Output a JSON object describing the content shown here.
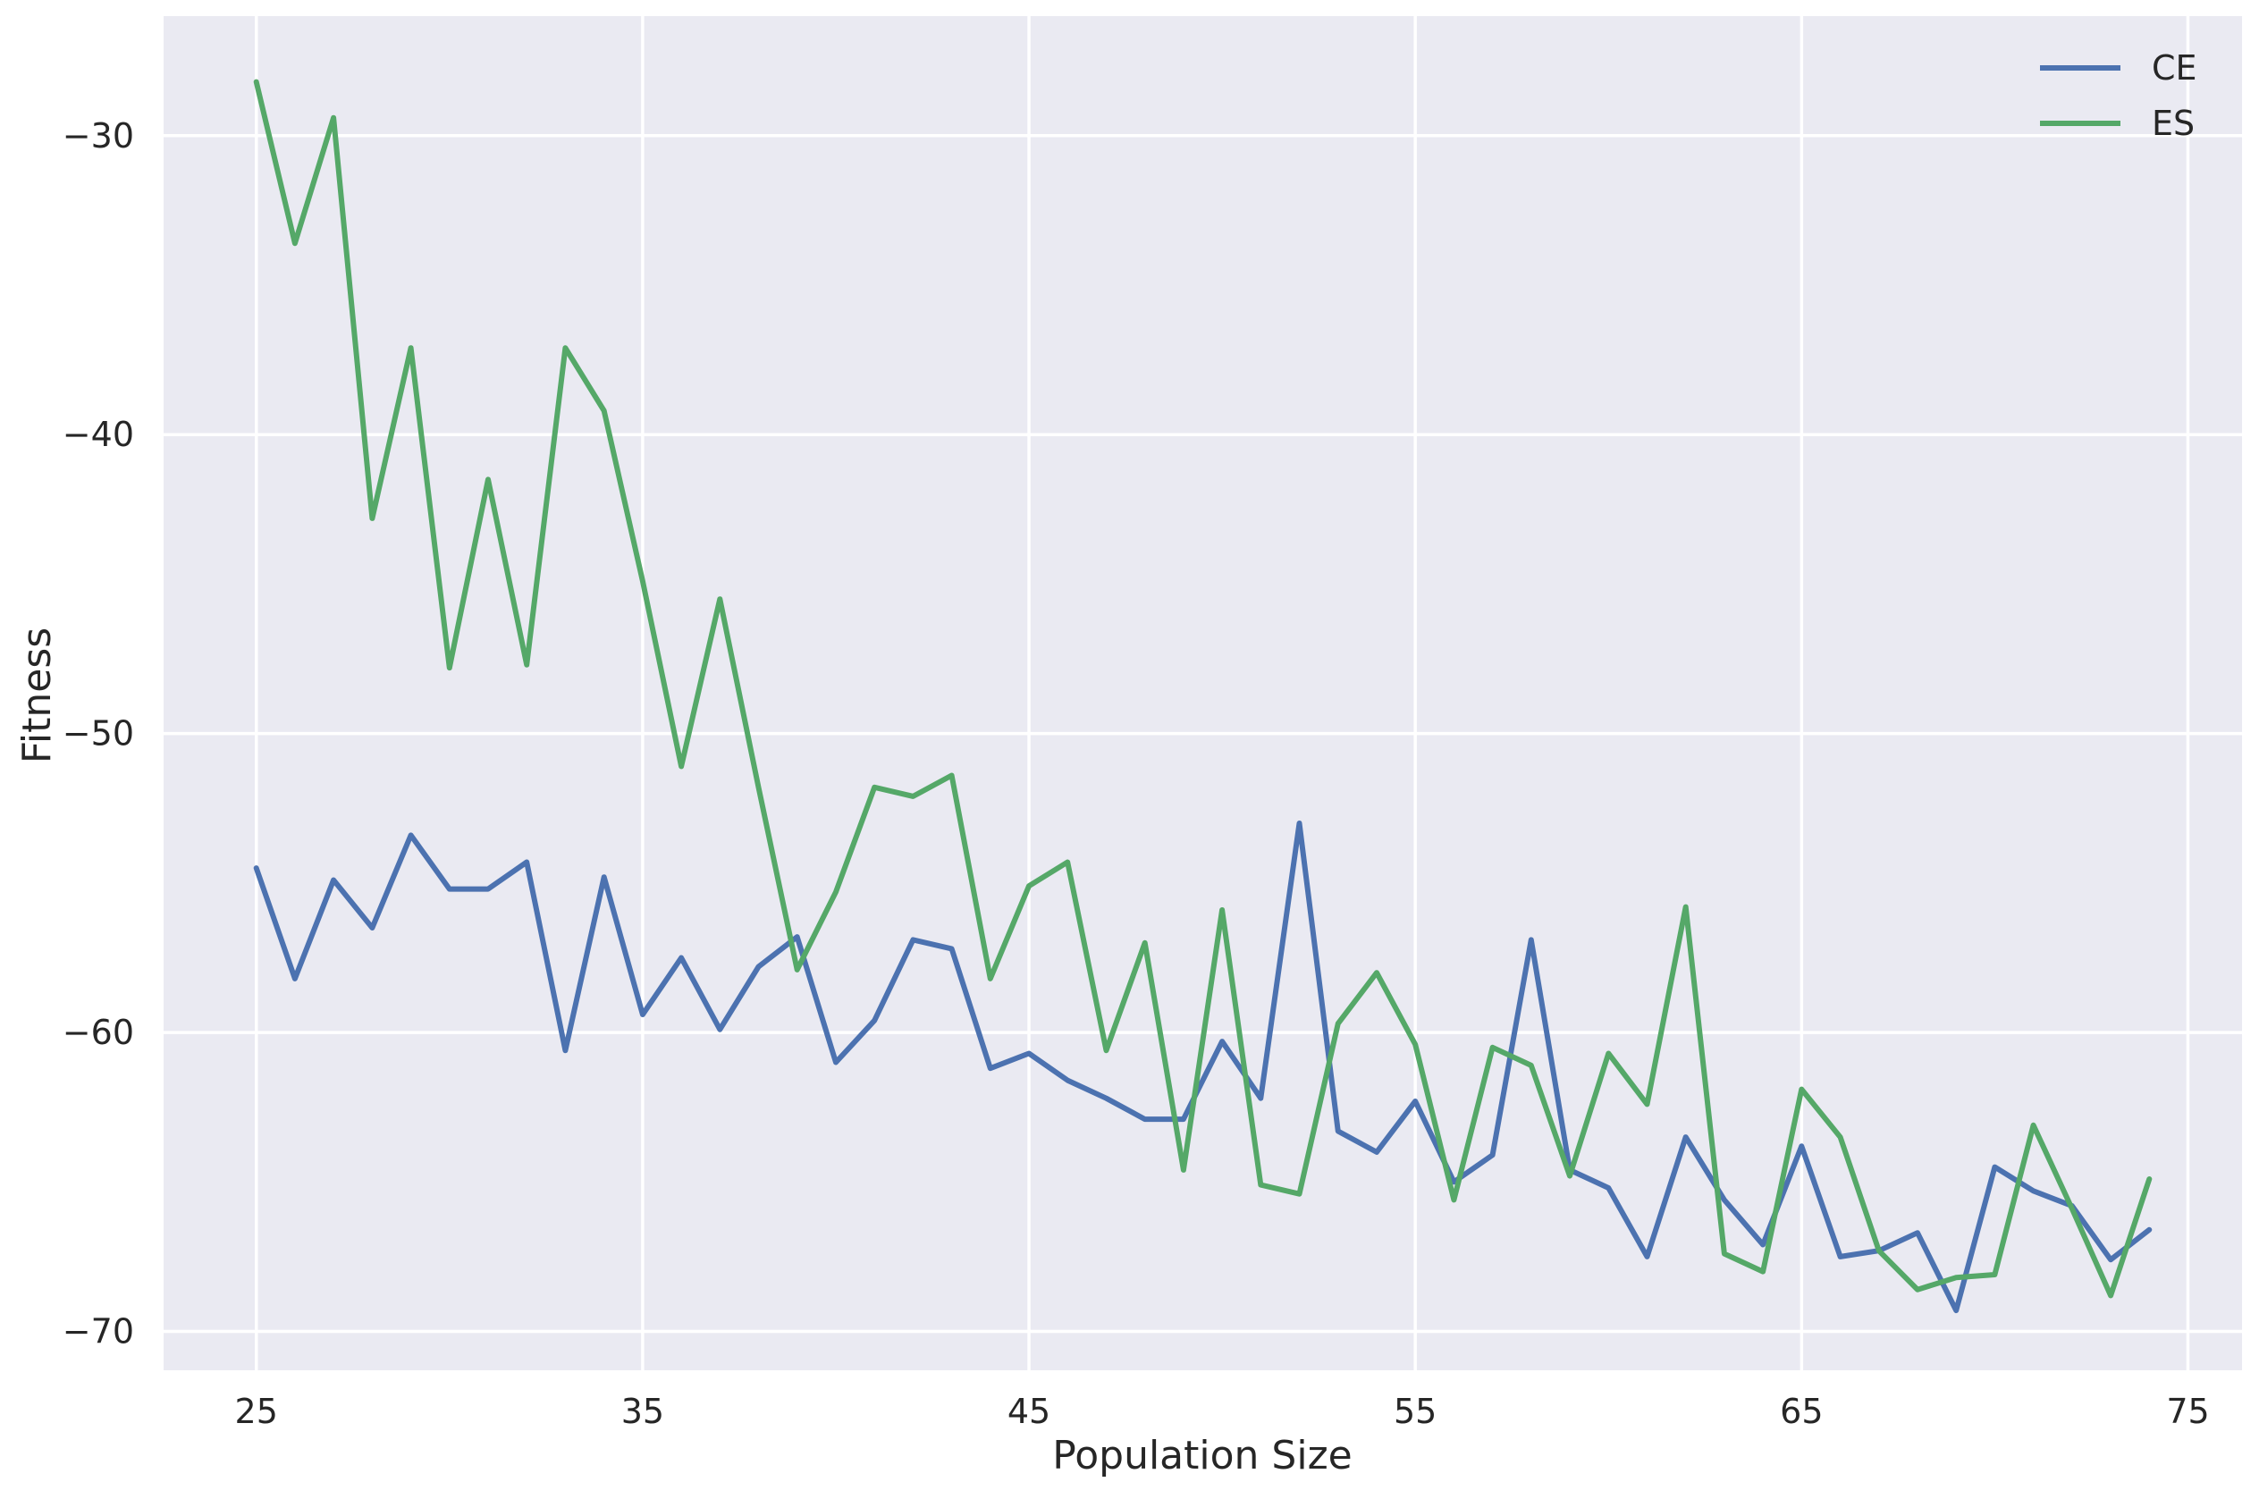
{
  "chart_data": {
    "type": "line",
    "title": "",
    "xlabel": "Population Size",
    "ylabel": "Fitness",
    "xlim": [
      22.6,
      76.4
    ],
    "ylim": [
      -71.3,
      -26.0
    ],
    "xticks": [
      25,
      35,
      45,
      55,
      65,
      75
    ],
    "yticks": [
      -30,
      -40,
      -50,
      -60,
      -70
    ],
    "grid": true,
    "legend_position": "top-right",
    "x": [
      25,
      26,
      27,
      28,
      29,
      30,
      31,
      32,
      33,
      34,
      35,
      36,
      37,
      38,
      39,
      40,
      41,
      42,
      43,
      44,
      45,
      46,
      47,
      48,
      49,
      50,
      51,
      52,
      53,
      54,
      55,
      56,
      57,
      58,
      59,
      60,
      61,
      62,
      63,
      64,
      65,
      66,
      67,
      68,
      69,
      70,
      71,
      72,
      73,
      74
    ],
    "series": [
      {
        "name": "CE",
        "color": "#4c72b0",
        "values": [
          -54.5,
          -58.2,
          -54.9,
          -56.5,
          -53.4,
          -55.2,
          -55.2,
          -54.3,
          -60.6,
          -54.8,
          -59.4,
          -57.5,
          -59.9,
          -57.8,
          -56.8,
          -61.0,
          -59.6,
          -56.9,
          -57.2,
          -61.2,
          -60.7,
          -61.6,
          -62.2,
          -62.9,
          -62.9,
          -60.3,
          -62.2,
          -53.0,
          -63.3,
          -64.0,
          -62.3,
          -65.0,
          -64.1,
          -56.9,
          -64.6,
          -65.2,
          -67.5,
          -63.5,
          -65.6,
          -67.1,
          -63.8,
          -67.5,
          -67.3,
          -66.7,
          -69.3,
          -64.5,
          -65.3,
          -65.8,
          -67.6,
          -66.6
        ]
      },
      {
        "name": "ES",
        "color": "#55a868",
        "values": [
          -28.2,
          -33.6,
          -29.4,
          -42.8,
          -37.1,
          -47.8,
          -41.5,
          -47.7,
          -37.1,
          -39.2,
          -44.9,
          -51.1,
          -45.5,
          -51.8,
          -57.9,
          -55.3,
          -51.8,
          -52.1,
          -51.4,
          -58.2,
          -55.1,
          -54.3,
          -60.6,
          -57.0,
          -64.6,
          -55.9,
          -65.1,
          -65.4,
          -59.7,
          -58.0,
          -60.4,
          -65.6,
          -60.5,
          -61.1,
          -64.8,
          -60.7,
          -62.4,
          -55.8,
          -67.4,
          -68.0,
          -61.9,
          -63.5,
          -67.3,
          -68.6,
          -68.2,
          -68.1,
          -63.1,
          -65.9,
          -68.8,
          -64.9
        ]
      }
    ]
  }
}
